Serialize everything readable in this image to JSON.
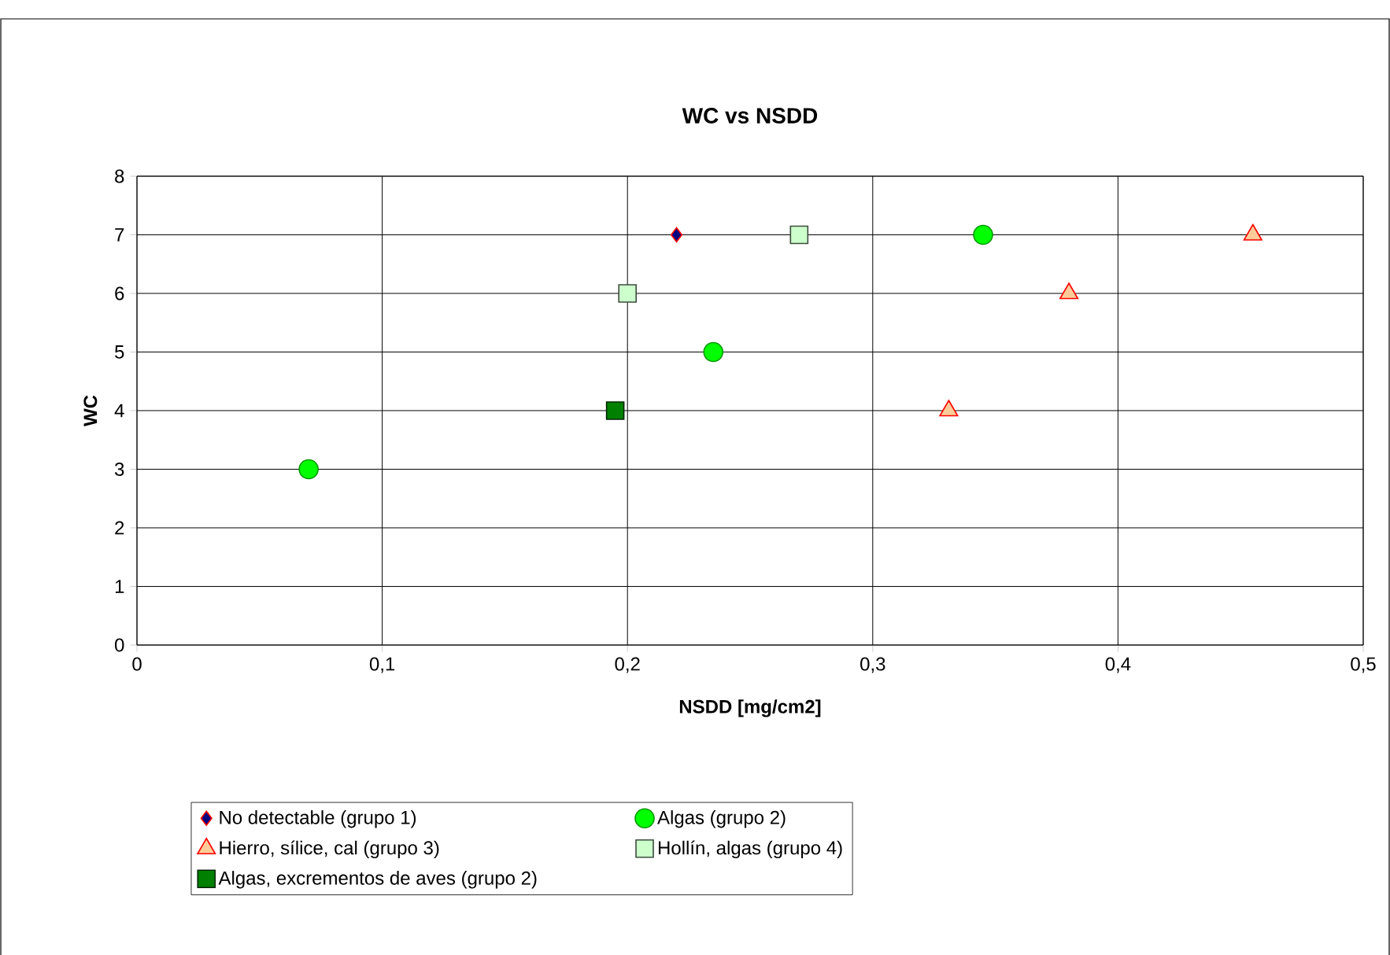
{
  "chart_data": {
    "type": "scatter",
    "title": "WC vs NSDD",
    "xlabel": "NSDD [mg/cm2]",
    "ylabel": "WC",
    "xlim": [
      0,
      0.5
    ],
    "xticks": [
      0,
      {
        "value": 0.1,
        "label": "0,1"
      },
      {
        "value": 0.2,
        "label": "0,2"
      },
      {
        "value": 0.3,
        "label": "0,3"
      },
      {
        "value": 0.4,
        "label": "0,4"
      },
      {
        "value": 0.5,
        "label": "0,5"
      }
    ],
    "ylim": [
      0,
      8
    ],
    "yticks": [
      0,
      1,
      2,
      3,
      4,
      5,
      6,
      7,
      8
    ],
    "grid": true,
    "legend": "bottom",
    "series": [
      {
        "name": "No detectable (grupo 1)",
        "color": "#000080",
        "marker": "diamond",
        "x": [
          0.22
        ],
        "values": [
          7
        ]
      },
      {
        "name": "Algas (grupo 2)",
        "color": "#00ff00",
        "marker": "circle",
        "x": [
          0.07,
          0.235,
          0.345
        ],
        "values": [
          3,
          5,
          7
        ]
      },
      {
        "name": "Hierro, sílice, cal (grupo 3)",
        "color": "#ffcc99",
        "marker": "triangle",
        "x": [
          0.331,
          0.38,
          0.455
        ],
        "values": [
          4,
          6,
          7
        ]
      },
      {
        "name": "Hollín, algas (grupo 4)",
        "color": "#ccffcc",
        "marker": "square",
        "x": [
          0.2,
          0.27
        ],
        "values": [
          6,
          7
        ]
      },
      {
        "name": "Algas, excrementos de aves (grupo 2)",
        "color": "#008000",
        "marker": "square",
        "x": [
          0.195
        ],
        "values": [
          4
        ]
      }
    ]
  }
}
